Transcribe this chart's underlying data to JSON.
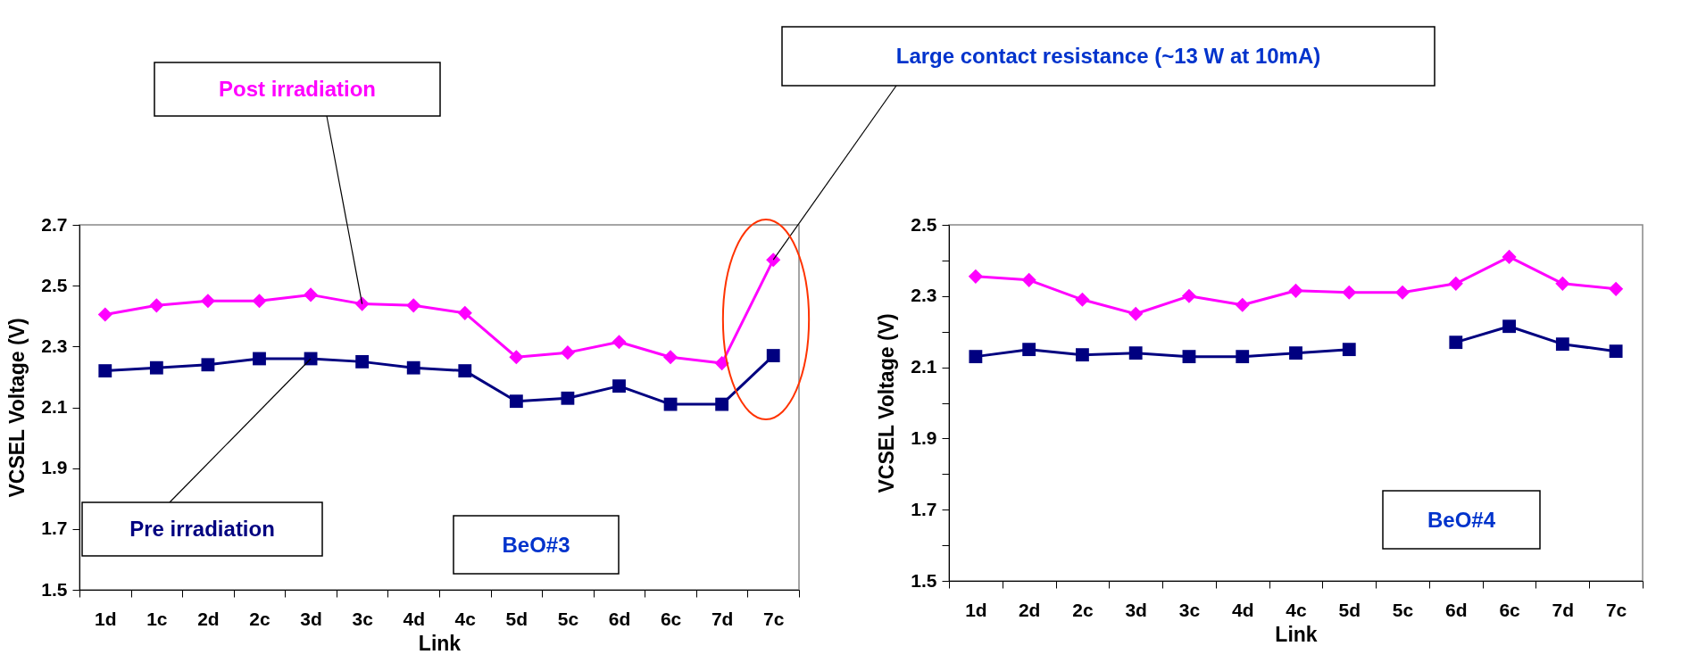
{
  "chart_data": [
    {
      "type": "line",
      "categories": [
        "1d",
        "1c",
        "2d",
        "2c",
        "3d",
        "3c",
        "4d",
        "4c",
        "5d",
        "5c",
        "6d",
        "6c",
        "7d",
        "7c"
      ],
      "series": [
        {
          "name": "Post irradiation",
          "color": "#ff00ff",
          "marker": "diamond",
          "values": [
            2.405,
            2.435,
            2.45,
            2.45,
            2.47,
            2.44,
            2.435,
            2.41,
            2.265,
            2.28,
            2.315,
            2.265,
            2.245,
            2.585
          ]
        },
        {
          "name": "Pre irradiation",
          "color": "#000080",
          "marker": "square",
          "values": [
            2.22,
            2.23,
            2.24,
            2.26,
            2.26,
            2.25,
            2.23,
            2.22,
            2.12,
            2.13,
            2.17,
            2.11,
            2.11,
            2.27
          ]
        }
      ],
      "xlabel": "Link",
      "ylabel": "VCSEL Voltage (V)",
      "ylim": [
        1.5,
        2.7
      ],
      "yticks": [
        1.5,
        1.7,
        1.9,
        2.1,
        2.3,
        2.5,
        2.7
      ],
      "annotations": [
        {
          "text": "Large contact resistance (~13 W at 10mA)",
          "x": "7c",
          "y": 2.585
        },
        "BeO#3"
      ],
      "legend": false,
      "grid": false
    },
    {
      "type": "line",
      "categories": [
        "1d",
        "2d",
        "2c",
        "3d",
        "3c",
        "4d",
        "4c",
        "5d",
        "5c",
        "6d",
        "6c",
        "7d",
        "7c"
      ],
      "series": [
        {
          "color": "#ff00ff",
          "marker": "diamond",
          "values": [
            2.355,
            2.345,
            2.29,
            2.25,
            2.3,
            2.275,
            2.315,
            2.31,
            2.31,
            2.335,
            2.41,
            2.335,
            2.32
          ]
        },
        {
          "color": "#000080",
          "marker": "square",
          "values": [
            2.13,
            2.15,
            2.135,
            2.14,
            2.13,
            2.13,
            2.14,
            2.15,
            null,
            2.17,
            2.215,
            2.165,
            2.145
          ]
        }
      ],
      "xlabel": "Link",
      "ylabel": "VCSEL Voltage (V)",
      "ylim": [
        1.5,
        2.5
      ],
      "yticks": [
        1.5,
        {
          "value": 1.6,
          "label": null
        },
        1.7,
        {
          "value": 1.8,
          "label": null
        },
        1.9,
        {
          "value": 2.0,
          "label": null
        },
        2.1,
        {
          "value": 2.2,
          "label": null
        },
        2.3,
        {
          "value": 2.4,
          "label": null
        },
        2.5
      ],
      "annotations": [
        "BeO#4"
      ],
      "legend": false,
      "grid": false
    }
  ]
}
